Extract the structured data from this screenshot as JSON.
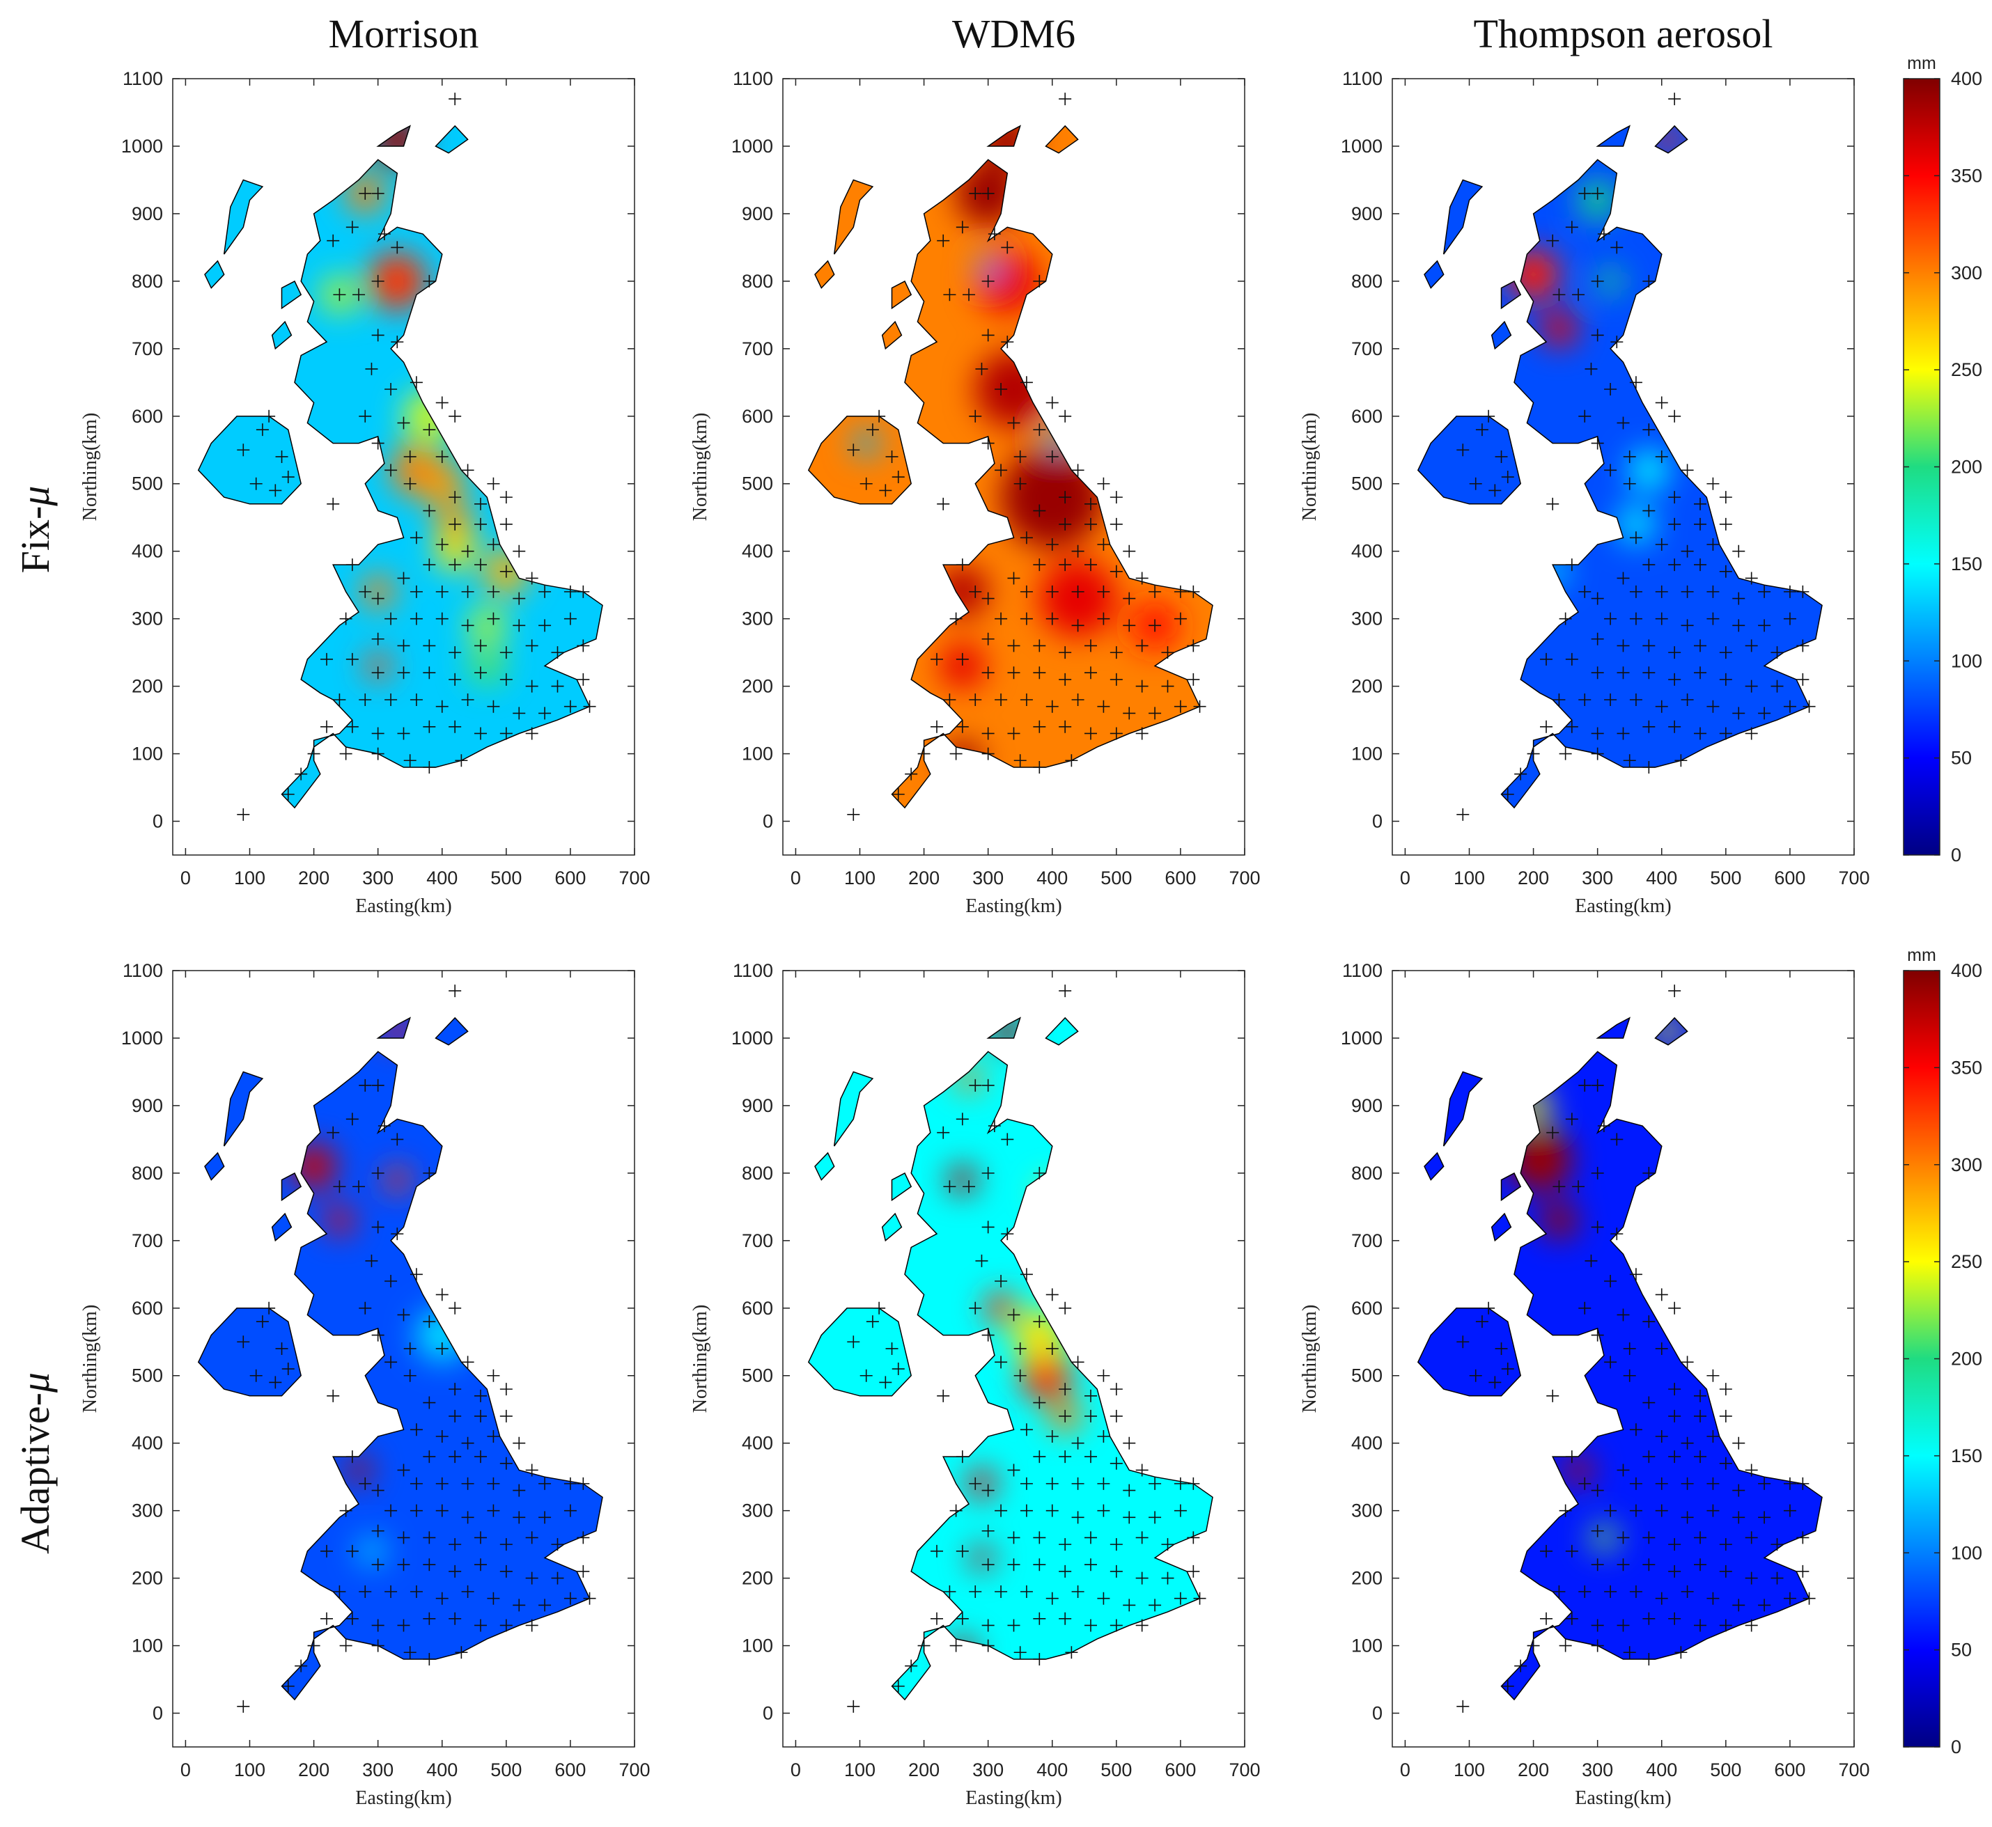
{
  "columns": [
    "Morrison",
    "WDM6",
    "Thompson aerosol"
  ],
  "rows": [
    {
      "label_main": "Fix-",
      "label_greek": "μ"
    },
    {
      "label_main": "Adaptive-",
      "label_greek": "μ"
    }
  ],
  "chart_data": {
    "type": "heatmap",
    "description_axes": true,
    "xlabel": "Easting(km)",
    "ylabel": "Northing(km)",
    "xlim": [
      -20,
      700
    ],
    "ylim": [
      -50,
      1100
    ],
    "xticks": [
      0,
      100,
      200,
      300,
      400,
      500,
      600,
      700
    ],
    "yticks": [
      0,
      100,
      200,
      300,
      400,
      500,
      600,
      700,
      800,
      900,
      1000,
      1100
    ],
    "colorbar": {
      "unit": "mm",
      "range": [
        0,
        400
      ],
      "ticks": [
        0,
        50,
        100,
        150,
        200,
        250,
        300,
        350,
        400
      ]
    },
    "background_value": {
      "Morrison|Fix-μ": 130,
      "WDM6|Fix-μ": 300,
      "Thompson aerosol|Fix-μ": 80,
      "Morrison|Adaptive-μ": 80,
      "WDM6|Adaptive-μ": 150,
      "Thompson aerosol|Adaptive-μ": 60
    },
    "stations": [
      [
        420,
        1070
      ],
      [
        90,
        10
      ],
      [
        280,
        930
      ],
      [
        300,
        930
      ],
      [
        260,
        880
      ],
      [
        230,
        860
      ],
      [
        310,
        870
      ],
      [
        330,
        850
      ],
      [
        380,
        800
      ],
      [
        300,
        800
      ],
      [
        270,
        780
      ],
      [
        240,
        780
      ],
      [
        300,
        720
      ],
      [
        330,
        710
      ],
      [
        290,
        670
      ],
      [
        320,
        640
      ],
      [
        280,
        600
      ],
      [
        360,
        650
      ],
      [
        400,
        620
      ],
      [
        420,
        600
      ],
      [
        340,
        590
      ],
      [
        380,
        580
      ],
      [
        300,
        560
      ],
      [
        350,
        540
      ],
      [
        400,
        540
      ],
      [
        440,
        520
      ],
      [
        480,
        500
      ],
      [
        320,
        520
      ],
      [
        350,
        500
      ],
      [
        420,
        480
      ],
      [
        460,
        470
      ],
      [
        500,
        480
      ],
      [
        380,
        460
      ],
      [
        420,
        440
      ],
      [
        460,
        440
      ],
      [
        500,
        440
      ],
      [
        360,
        420
      ],
      [
        400,
        410
      ],
      [
        440,
        400
      ],
      [
        480,
        410
      ],
      [
        520,
        400
      ],
      [
        380,
        380
      ],
      [
        420,
        380
      ],
      [
        460,
        380
      ],
      [
        500,
        370
      ],
      [
        540,
        360
      ],
      [
        340,
        360
      ],
      [
        360,
        340
      ],
      [
        400,
        340
      ],
      [
        440,
        340
      ],
      [
        480,
        340
      ],
      [
        520,
        330
      ],
      [
        560,
        340
      ],
      [
        600,
        340
      ],
      [
        300,
        330
      ],
      [
        320,
        300
      ],
      [
        360,
        300
      ],
      [
        400,
        300
      ],
      [
        440,
        290
      ],
      [
        480,
        300
      ],
      [
        520,
        290
      ],
      [
        560,
        290
      ],
      [
        600,
        300
      ],
      [
        620,
        340
      ],
      [
        260,
        380
      ],
      [
        280,
        340
      ],
      [
        250,
        300
      ],
      [
        300,
        270
      ],
      [
        340,
        260
      ],
      [
        380,
        260
      ],
      [
        420,
        250
      ],
      [
        460,
        260
      ],
      [
        500,
        250
      ],
      [
        540,
        260
      ],
      [
        580,
        250
      ],
      [
        620,
        260
      ],
      [
        220,
        240
      ],
      [
        260,
        240
      ],
      [
        300,
        220
      ],
      [
        340,
        220
      ],
      [
        380,
        220
      ],
      [
        420,
        210
      ],
      [
        460,
        220
      ],
      [
        500,
        210
      ],
      [
        540,
        200
      ],
      [
        580,
        200
      ],
      [
        620,
        210
      ],
      [
        240,
        180
      ],
      [
        280,
        180
      ],
      [
        320,
        180
      ],
      [
        360,
        180
      ],
      [
        400,
        170
      ],
      [
        440,
        180
      ],
      [
        480,
        170
      ],
      [
        520,
        160
      ],
      [
        560,
        160
      ],
      [
        600,
        170
      ],
      [
        630,
        170
      ],
      [
        300,
        130
      ],
      [
        340,
        130
      ],
      [
        380,
        140
      ],
      [
        420,
        140
      ],
      [
        460,
        130
      ],
      [
        500,
        130
      ],
      [
        540,
        130
      ],
      [
        220,
        140
      ],
      [
        260,
        140
      ],
      [
        200,
        100
      ],
      [
        250,
        100
      ],
      [
        300,
        100
      ],
      [
        350,
        90
      ],
      [
        380,
        80
      ],
      [
        430,
        90
      ],
      [
        180,
        70
      ],
      [
        160,
        40
      ],
      [
        130,
        600
      ],
      [
        90,
        550
      ],
      [
        120,
        580
      ],
      [
        150,
        540
      ],
      [
        110,
        500
      ],
      [
        140,
        490
      ],
      [
        160,
        510
      ],
      [
        230,
        470
      ]
    ],
    "hotspots": {
      "Morrison|Fix-μ": [
        [
          330,
          1010,
          390,
          40
        ],
        [
          330,
          800,
          330,
          45
        ],
        [
          280,
          930,
          300,
          30
        ],
        [
          360,
          520,
          300,
          40
        ],
        [
          400,
          500,
          290,
          35
        ],
        [
          420,
          440,
          290,
          30
        ],
        [
          500,
          370,
          280,
          35
        ],
        [
          300,
          340,
          300,
          25
        ],
        [
          300,
          230,
          320,
          20
        ],
        [
          380,
          600,
          240,
          40
        ],
        [
          470,
          230,
          210,
          30
        ],
        [
          470,
          290,
          230,
          30
        ],
        [
          240,
          780,
          230,
          30
        ],
        [
          420,
          400,
          260,
          30
        ]
      ],
      "WDM6|Fix-μ": [
        [
          400,
          480,
          390,
          80
        ],
        [
          340,
          640,
          380,
          60
        ],
        [
          330,
          800,
          360,
          50
        ],
        [
          260,
          340,
          380,
          40
        ],
        [
          260,
          230,
          360,
          35
        ],
        [
          260,
          90,
          390,
          30
        ],
        [
          300,
          930,
          390,
          50
        ],
        [
          330,
          1010,
          390,
          40
        ],
        [
          440,
          330,
          360,
          60
        ],
        [
          560,
          290,
          340,
          40
        ],
        [
          300,
          820,
          100,
          18
        ],
        [
          410,
          570,
          120,
          20
        ],
        [
          110,
          560,
          120,
          20
        ]
      ],
      "Thompson aerosol|Fix-μ": [
        [
          240,
          730,
          360,
          28
        ],
        [
          200,
          810,
          340,
          40
        ],
        [
          410,
          1010,
          330,
          20
        ],
        [
          300,
          920,
          200,
          30
        ],
        [
          380,
          520,
          150,
          30
        ],
        [
          320,
          800,
          200,
          20
        ],
        [
          230,
          370,
          150,
          20
        ],
        [
          360,
          440,
          140,
          30
        ]
      ],
      "Morrison|Adaptive-μ": [
        [
          200,
          810,
          370,
          35
        ],
        [
          240,
          730,
          360,
          22
        ],
        [
          330,
          790,
          330,
          20
        ],
        [
          270,
          360,
          380,
          20
        ],
        [
          330,
          1010,
          350,
          20
        ],
        [
          400,
          560,
          140,
          40
        ],
        [
          290,
          240,
          140,
          20
        ]
      ],
      "WDM6|Adaptive-μ": [
        [
          260,
          790,
          380,
          22
        ],
        [
          320,
          600,
          330,
          25
        ],
        [
          390,
          500,
          330,
          40
        ],
        [
          420,
          440,
          300,
          25
        ],
        [
          290,
          340,
          360,
          22
        ],
        [
          290,
          230,
          370,
          18
        ],
        [
          260,
          90,
          380,
          22
        ],
        [
          330,
          1010,
          390,
          25
        ],
        [
          270,
          940,
          300,
          20
        ],
        [
          400,
          770,
          260,
          20
        ],
        [
          380,
          560,
          260,
          40
        ]
      ],
      "Thompson aerosol|Adaptive-μ": [
        [
          210,
          820,
          390,
          50
        ],
        [
          240,
          730,
          390,
          28
        ],
        [
          270,
          360,
          380,
          22
        ],
        [
          200,
          900,
          250,
          25
        ],
        [
          410,
          1010,
          250,
          20
        ],
        [
          310,
          260,
          220,
          20
        ]
      ]
    }
  }
}
